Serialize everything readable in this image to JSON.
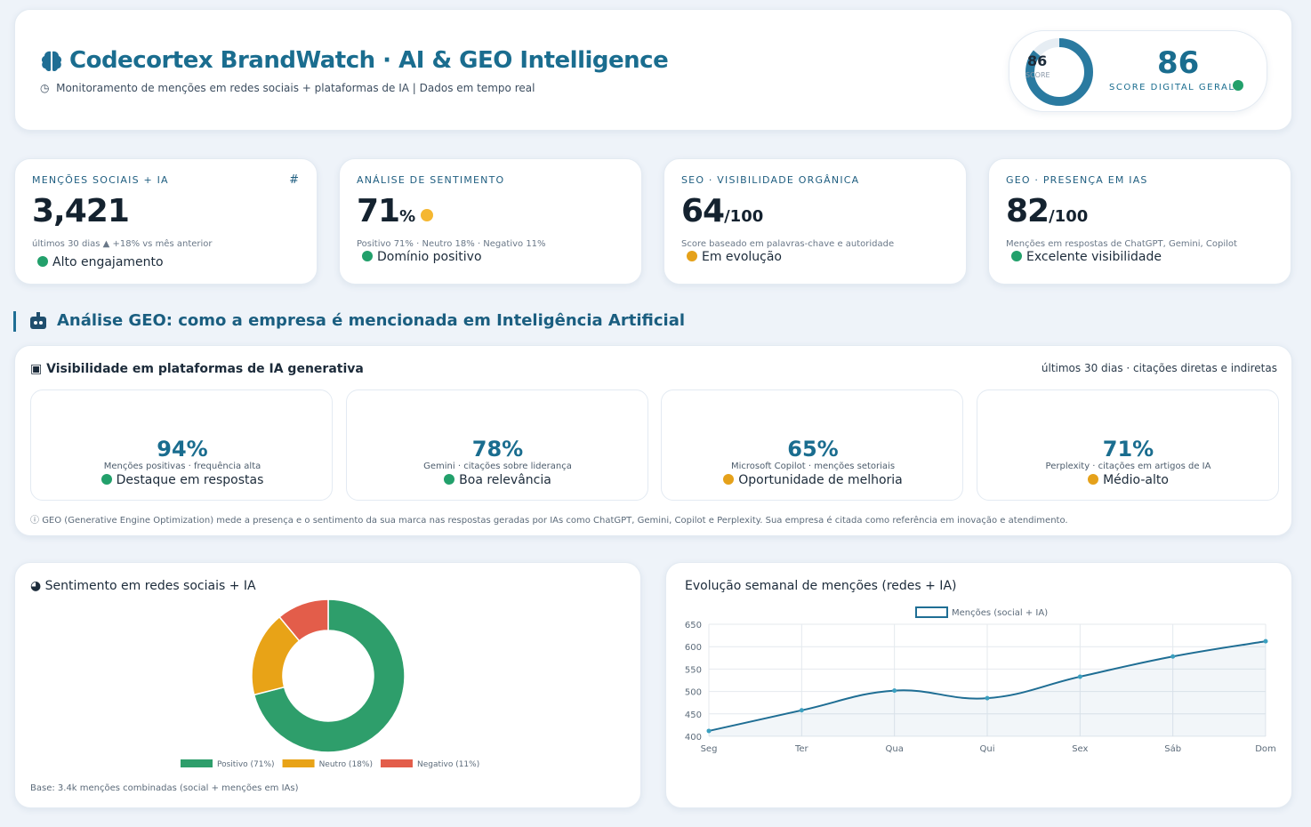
{
  "header": {
    "title": "Codecortex BrandWatch · AI & GEO Intelligence",
    "subtitle": "Monitoramento de menções em redes sociais + plataformas de IA | Dados em tempo real",
    "score": 86,
    "score_tag": "SCORE",
    "score_caption": "SCORE DIGITAL GERAL"
  },
  "kpis": [
    {
      "label": "MENÇÕES SOCIAIS + IA",
      "icon": "#",
      "value": "3,421",
      "note": "últimos 30 dias ▲ +18% vs mês anterior",
      "status": "Alto engajamento",
      "dot": "#22a06b"
    },
    {
      "label": "ANÁLISE DE SENTIMENTO",
      "value": "71",
      "unit": "%",
      "note": "Positivo 71% · Neutro 18% · Negativo 11%",
      "status": "Domínio positivo",
      "dot": "#22a06b"
    },
    {
      "label": "SEO · VISIBILIDADE ORGÂNICA",
      "value": "64",
      "unit": "/100",
      "note": "Score baseado em palavras-chave e autoridade",
      "status": "Em evolução",
      "dot": "#e5a11a"
    },
    {
      "label": "GEO · PRESENÇA EM IAS",
      "value": "82",
      "unit": "/100",
      "note": "Menções em respostas de ChatGPT, Gemini, Copilot",
      "status": "Excelente visibilidade",
      "dot": "#22a06b"
    }
  ],
  "geo": {
    "section_title": "Análise GEO: como a empresa é mencionada em Inteligência Artificial",
    "panel_title": "Visibilidade em plataformas de IA generativa",
    "period": "últimos 30 dias · citações diretas e indiretas",
    "platforms": [
      {
        "value": "94%",
        "description": "Menções positivas · frequência alta",
        "status": "Destaque em respostas",
        "dot": "#22a06b"
      },
      {
        "value": "78%",
        "description": "Gemini · citações sobre liderança",
        "status": "Boa relevância",
        "dot": "#22a06b"
      },
      {
        "value": "65%",
        "description": "Microsoft Copilot · menções setoriais",
        "status": "Oportunidade de melhoria",
        "dot": "#e5a11a"
      },
      {
        "value": "71%",
        "description": "Perplexity · citações em artigos de IA",
        "status": "Médio-alto",
        "dot": "#e5a11a"
      }
    ],
    "footnote": "GEO (Generative Engine Optimization) mede a presença e o sentimento da sua marca nas respostas geradas por IAs como ChatGPT, Gemini, Copilot e Perplexity. Sua empresa é citada como referência em inovação e atendimento."
  },
  "sentiment_chart": {
    "type": "pie",
    "title": "Sentimento em redes sociais + IA",
    "categories": [
      "Positivo (71%)",
      "Neutro (18%)",
      "Negativo (11%)"
    ],
    "values": [
      71,
      18,
      11
    ],
    "colors": [
      "#2e9e6b",
      "#e8a317",
      "#e35d4a"
    ],
    "footnote": "Base: 3.4k menções combinadas (social + menções em IAs)"
  },
  "weekly_chart": {
    "type": "line",
    "title": "Evolução semanal de menções (redes + IA)",
    "categories": [
      "Seg",
      "Ter",
      "Qua",
      "Qui",
      "Sex",
      "Sáb",
      "Dom"
    ],
    "series": [
      {
        "name": "Menções (social + IA)",
        "color": "#1f6e94",
        "values": [
          412,
          458,
          502,
          485,
          533,
          578,
          612
        ]
      }
    ],
    "ylim": [
      400,
      650
    ],
    "yticks": [
      400,
      450,
      500,
      550,
      600,
      650
    ],
    "grid": true
  }
}
